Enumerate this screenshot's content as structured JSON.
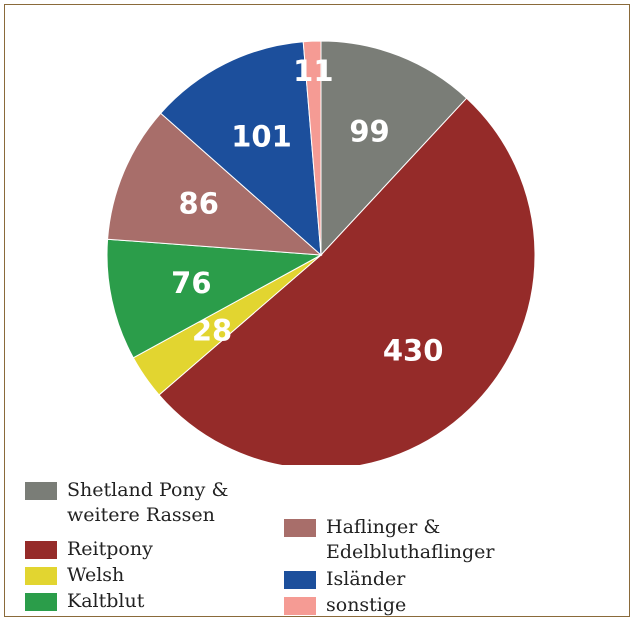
{
  "chart_data": {
    "type": "pie",
    "slices": [
      {
        "label": "99",
        "value": 99,
        "color": "#7a7d77"
      },
      {
        "label": "430",
        "value": 430,
        "color": "#952b29"
      },
      {
        "label": "28",
        "value": 28,
        "color": "#e2d530"
      },
      {
        "label": "76",
        "value": 76,
        "color": "#2b9d4a"
      },
      {
        "label": "86",
        "value": 86,
        "color": "#a86e6a"
      },
      {
        "label": "101",
        "value": 101,
        "color": "#1c4f9c"
      },
      {
        "label": "11",
        "value": 11,
        "color": "#f59b94"
      }
    ],
    "legend": [
      {
        "name": "Shetland Pony & weitere Rassen",
        "line1": "Shetland Pony &",
        "line2": "weitere Rassen",
        "color": "#7a7d77"
      },
      {
        "name": "Reitpony",
        "line1": "Reitpony",
        "line2": "",
        "color": "#952b29"
      },
      {
        "name": "Welsh",
        "line1": "Welsh",
        "line2": "",
        "color": "#e2d530"
      },
      {
        "name": "Kaltblut",
        "line1": "Kaltblut",
        "line2": "",
        "color": "#2b9d4a"
      },
      {
        "name": "Haflinger & Edelbluthaflinger",
        "line1": "Haflinger &",
        "line2": "Edelbluthaflinger",
        "color": "#a86e6a"
      },
      {
        "name": "Isländer",
        "line1": "Isländer",
        "line2": "",
        "color": "#1c4f9c"
      },
      {
        "name": "sonstige",
        "line1": "sonstige",
        "line2": "",
        "color": "#f59b94"
      }
    ],
    "legend_placement": "bottom"
  }
}
